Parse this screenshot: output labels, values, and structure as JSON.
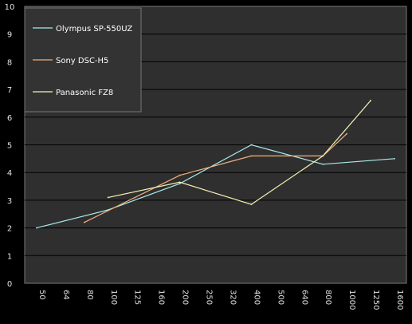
{
  "chart_data": {
    "type": "line",
    "title": "",
    "xlabel": "",
    "ylabel": "",
    "categories": [
      "50",
      "64",
      "80",
      "100",
      "125",
      "160",
      "200",
      "250",
      "320",
      "400",
      "500",
      "640",
      "800",
      "1000",
      "1250",
      "1600"
    ],
    "ylim": [
      0,
      10
    ],
    "yticks": [
      "0",
      "1",
      "2",
      "3",
      "4",
      "5",
      "6",
      "7",
      "8",
      "9",
      "10"
    ],
    "grid": "horizontal",
    "legend_position": "top-left",
    "series": [
      {
        "name": "Olympus SP-550UZ",
        "color": "#a8ecec",
        "values": [
          2.0,
          null,
          null,
          2.65,
          null,
          null,
          3.6,
          null,
          null,
          5.0,
          null,
          null,
          4.3,
          null,
          null,
          4.5
        ]
      },
      {
        "name": "Sony DSC-H5",
        "color": "#f4b07a",
        "values": [
          null,
          null,
          2.2,
          null,
          null,
          null,
          3.9,
          null,
          null,
          4.6,
          null,
          null,
          4.6,
          5.4,
          null,
          null
        ]
      },
      {
        "name": "Panasonic FZ8",
        "color": "#f6f2b4",
        "values": [
          null,
          null,
          null,
          3.1,
          null,
          null,
          3.65,
          null,
          null,
          2.85,
          null,
          null,
          4.6,
          null,
          6.6,
          null
        ]
      }
    ]
  }
}
